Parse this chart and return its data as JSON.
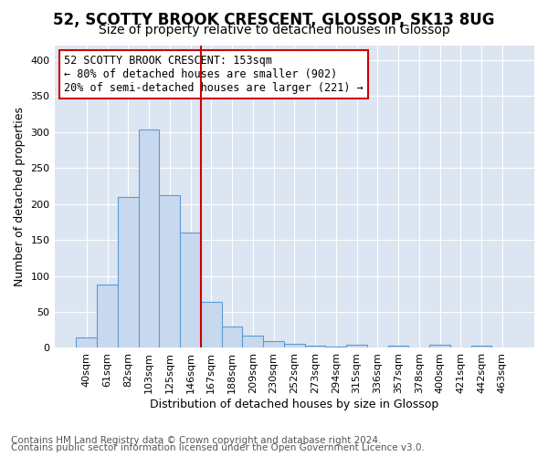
{
  "title_line1": "52, SCOTTY BROOK CRESCENT, GLOSSOP, SK13 8UG",
  "title_line2": "Size of property relative to detached houses in Glossop",
  "xlabel": "Distribution of detached houses by size in Glossop",
  "ylabel": "Number of detached properties",
  "categories": [
    "40sqm",
    "61sqm",
    "82sqm",
    "103sqm",
    "125sqm",
    "146sqm",
    "167sqm",
    "188sqm",
    "209sqm",
    "230sqm",
    "252sqm",
    "273sqm",
    "294sqm",
    "315sqm",
    "336sqm",
    "357sqm",
    "378sqm",
    "400sqm",
    "421sqm",
    "442sqm",
    "463sqm"
  ],
  "values": [
    15,
    88,
    210,
    303,
    212,
    160,
    64,
    30,
    17,
    10,
    6,
    3,
    2,
    4,
    1,
    3,
    1,
    4,
    1,
    3,
    1
  ],
  "bar_color": "#c8d8ee",
  "bar_edge_color": "#5b9bd5",
  "vline_x": 5.5,
  "vline_color": "#cc0000",
  "annotation_text": "52 SCOTTY BROOK CRESCENT: 153sqm\n← 80% of detached houses are smaller (902)\n20% of semi-detached houses are larger (221) →",
  "annotation_box_color": "#ffffff",
  "annotation_box_edge_color": "#cc0000",
  "ylim": [
    0,
    420
  ],
  "yticks": [
    0,
    50,
    100,
    150,
    200,
    250,
    300,
    350,
    400
  ],
  "footer_line1": "Contains HM Land Registry data © Crown copyright and database right 2024.",
  "footer_line2": "Contains public sector information licensed under the Open Government Licence v3.0.",
  "fig_bg_color": "#ffffff",
  "plot_bg_color": "#dce6f2",
  "grid_color": "#ffffff",
  "title_fontsize": 12,
  "subtitle_fontsize": 10,
  "axis_label_fontsize": 9,
  "tick_fontsize": 8,
  "annotation_fontsize": 8.5,
  "footer_fontsize": 7.5
}
